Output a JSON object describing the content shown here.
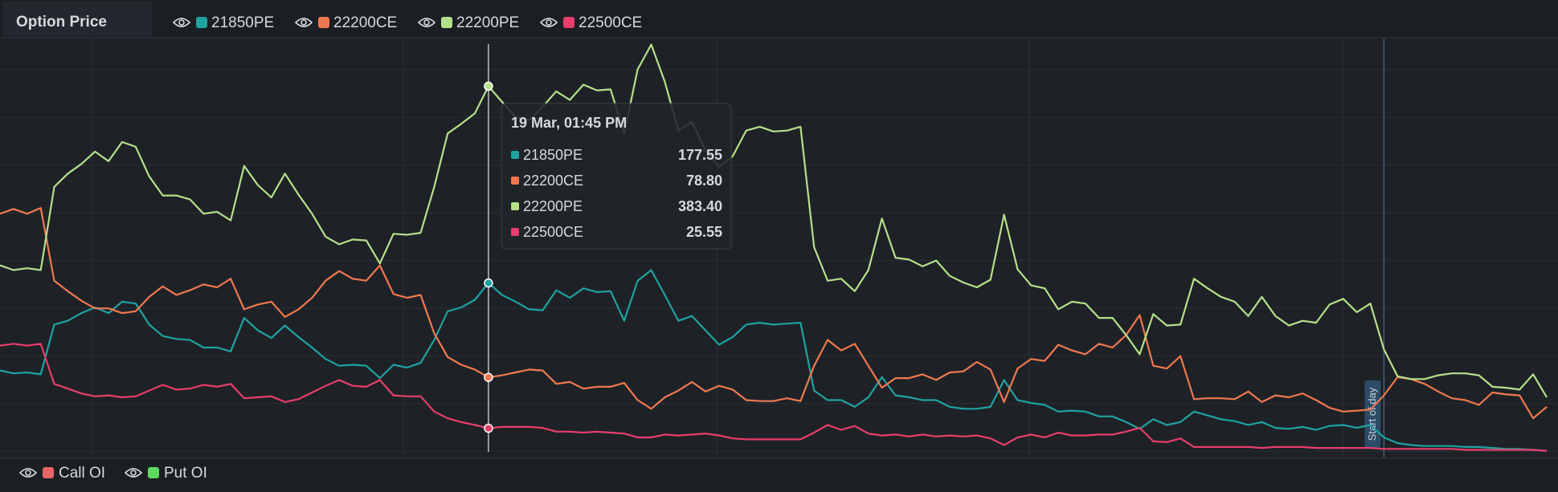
{
  "chart_data": {
    "type": "line",
    "panel_title": "Option Price",
    "ylim": [
      -5,
      432
    ],
    "series": [
      {
        "name": "21850PE",
        "color": "#1fa2a0",
        "values": [
          86,
          83,
          84,
          82,
          134,
          138,
          146,
          152,
          146,
          158,
          156,
          134,
          122,
          119,
          118,
          110,
          110,
          106,
          141,
          128,
          120,
          133,
          121,
          110,
          98,
          91,
          92,
          91,
          78,
          92,
          89,
          94,
          118,
          148,
          152,
          160,
          177.55,
          165,
          158,
          150,
          149,
          170,
          162,
          172,
          168,
          169,
          138,
          180,
          191,
          165,
          138,
          143,
          128,
          113,
          121,
          134,
          136,
          134,
          135,
          136,
          65,
          55,
          55,
          48,
          58,
          79,
          60,
          58,
          55,
          55,
          48,
          46,
          46,
          48,
          76,
          55,
          52,
          50,
          43,
          44,
          43,
          38,
          38,
          32,
          25,
          35,
          29,
          32,
          43,
          39,
          35,
          33,
          29,
          32,
          26,
          25,
          27,
          24,
          28,
          29,
          26,
          29,
          16,
          10,
          8,
          7,
          7,
          7,
          6,
          6,
          5,
          4,
          4,
          3,
          2
        ]
      },
      {
        "name": "22200CE",
        "color": "#f07850",
        "values": [
          250,
          255,
          250,
          256,
          180,
          169,
          159,
          151,
          151,
          146,
          148,
          163,
          174,
          165,
          170,
          176,
          173,
          182,
          150,
          155,
          158,
          142,
          150,
          162,
          180,
          190,
          182,
          180,
          196,
          166,
          162,
          165,
          125,
          100,
          92,
          87,
          78.8,
          81,
          84,
          87,
          86,
          72,
          74,
          67,
          69,
          69,
          73,
          55,
          46,
          58,
          65,
          74,
          64,
          70,
          66,
          55,
          54,
          54,
          57,
          54,
          91,
          118,
          107,
          114,
          91,
          68,
          78,
          78,
          82,
          76,
          84,
          85,
          95,
          87,
          53,
          88,
          98,
          96,
          113,
          107,
          103,
          114,
          110,
          123,
          144,
          91,
          88,
          101,
          56,
          57,
          57,
          56,
          64,
          53,
          60,
          58,
          62,
          55,
          47,
          43,
          44,
          45,
          60,
          79,
          77,
          72,
          64,
          57,
          55,
          50,
          63,
          61,
          60,
          36,
          48
        ]
      },
      {
        "name": "22200PE",
        "color": "#b5e08a",
        "values": [
          196,
          191,
          193,
          191,
          278,
          292,
          302,
          315,
          305,
          325,
          320,
          289,
          269,
          269,
          265,
          250,
          252,
          243,
          300,
          280,
          267,
          292,
          270,
          250,
          226,
          218,
          223,
          222,
          198,
          229,
          228,
          230,
          278,
          334,
          344,
          355,
          383.4,
          367,
          351,
          348,
          362,
          378,
          369,
          385,
          379,
          380,
          334,
          401,
          427,
          388,
          337,
          346,
          316,
          299,
          310,
          337,
          341,
          336,
          337,
          341,
          215,
          180,
          182,
          169,
          191,
          245,
          204,
          202,
          195,
          201,
          185,
          178,
          173,
          181,
          249,
          192,
          175,
          172,
          150,
          158,
          156,
          141,
          141,
          123,
          103,
          145,
          133,
          134,
          182,
          172,
          163,
          158,
          143,
          163,
          143,
          133,
          138,
          136,
          155,
          161,
          147,
          156,
          108,
          80,
          77,
          77,
          81,
          83,
          83,
          81,
          69,
          68,
          66,
          82,
          58
        ]
      },
      {
        "name": "22500CE",
        "color": "#e83e6c",
        "values": [
          112,
          114,
          112,
          114,
          72,
          67,
          62,
          59,
          60,
          58,
          59,
          65,
          71,
          66,
          67,
          71,
          69,
          72,
          57,
          58,
          59,
          53,
          56,
          63,
          70,
          76,
          70,
          69,
          76,
          60,
          59,
          59,
          43,
          36,
          32,
          29,
          25.55,
          27,
          27,
          27,
          26,
          22,
          22,
          21,
          22,
          21,
          20,
          16,
          16,
          19,
          18,
          19,
          20,
          18,
          15,
          14,
          14,
          14,
          14,
          14,
          21,
          29,
          24,
          28,
          20,
          18,
          19,
          17,
          19,
          17,
          18,
          17,
          18,
          15,
          8,
          16,
          19,
          16,
          21,
          18,
          18,
          19,
          19,
          22,
          26,
          12,
          11,
          15,
          6,
          6,
          6,
          6,
          6,
          5,
          6,
          6,
          6,
          5,
          5,
          5,
          5,
          5,
          4,
          4,
          4,
          4,
          4,
          4,
          3,
          3,
          3,
          3,
          3,
          3,
          2
        ]
      }
    ],
    "tooltip": {
      "title": "19 Mar, 01:45 PM",
      "index": 36,
      "labels": [
        "177.55",
        "78.80",
        "383.40",
        "25.55"
      ]
    },
    "annotation": {
      "text": "Start of day",
      "index": 102
    },
    "secondary_legend": [
      {
        "name": "Call OI",
        "color": "#e86565"
      },
      {
        "name": "Put OI",
        "color": "#5fd85f"
      }
    ]
  }
}
